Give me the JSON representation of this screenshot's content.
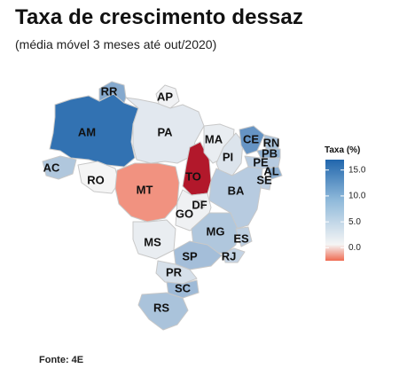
{
  "title": "Taxa de crescimento dessaz",
  "subtitle": "(média móvel 3 meses até out/2020)",
  "source": "Fonte: 4E",
  "legend": {
    "title": "Taxa (%)",
    "ticks": [
      "15.0",
      "10.0",
      "5.0",
      "0.0"
    ],
    "tick_values": [
      15,
      10,
      5,
      0
    ],
    "range": [
      -2.5,
      17
    ],
    "colors": {
      "neg": "#ef6b52",
      "zero": "#f5f5f5",
      "pos": "#2166ac"
    }
  },
  "map": {
    "states": [
      {
        "code": "AM",
        "label": "AM",
        "value": 15.6
      },
      {
        "code": "RR",
        "label": "RR",
        "value": 9.0
      },
      {
        "code": "AP",
        "label": "AP",
        "value": 0.3
      },
      {
        "code": "PA",
        "label": "PA",
        "value": 1.5
      },
      {
        "code": "AC",
        "label": "AC",
        "value": 5.5
      },
      {
        "code": "RO",
        "label": "RO",
        "value": 0.0
      },
      {
        "code": "MT",
        "label": "MT",
        "value": -1.8
      },
      {
        "code": "TO",
        "label": "TO",
        "value": -6.0
      },
      {
        "code": "MA",
        "label": "MA",
        "value": 1.0
      },
      {
        "code": "PI",
        "label": "PI",
        "value": 2.0
      },
      {
        "code": "CE",
        "label": "CE",
        "value": 11.5
      },
      {
        "code": "RN",
        "label": "RN",
        "value": 6.0
      },
      {
        "code": "PB",
        "label": "PB",
        "value": 8.0
      },
      {
        "code": "PE",
        "label": "PE",
        "value": 5.0
      },
      {
        "code": "AL",
        "label": "AL",
        "value": 8.5
      },
      {
        "code": "SE",
        "label": "SE",
        "value": 4.5
      },
      {
        "code": "BA",
        "label": "BA",
        "value": 5.0
      },
      {
        "code": "GO",
        "label": "GO",
        "value": 0.5
      },
      {
        "code": "DF",
        "label": "DF",
        "value": 0.5
      },
      {
        "code": "MG",
        "label": "MG",
        "value": 5.5
      },
      {
        "code": "ES",
        "label": "ES",
        "value": 4.5
      },
      {
        "code": "RJ",
        "label": "RJ",
        "value": 4.0
      },
      {
        "code": "MS",
        "label": "MS",
        "value": 1.0
      },
      {
        "code": "SP",
        "label": "SP",
        "value": 6.5
      },
      {
        "code": "PR",
        "label": "PR",
        "value": 2.5
      },
      {
        "code": "SC",
        "label": "SC",
        "value": 7.0
      },
      {
        "code": "RS",
        "label": "RS",
        "value": 6.0
      }
    ]
  }
}
